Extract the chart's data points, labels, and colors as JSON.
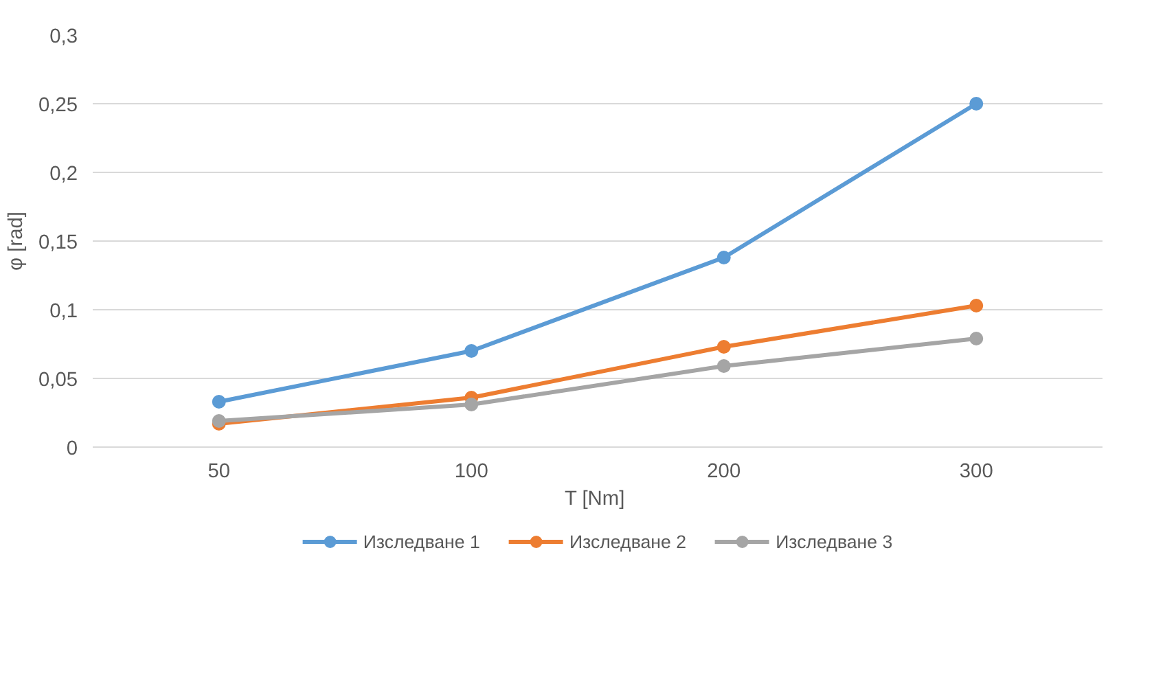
{
  "chart_data": {
    "type": "line",
    "xlabel": "T  [Nm]",
    "ylabel": "φ [rad]",
    "categories": [
      "50",
      "100",
      "200",
      "300"
    ],
    "ylim": [
      0,
      0.3
    ],
    "yticks": [
      0,
      {
        "value": 0.05,
        "label": "0,05"
      },
      {
        "value": 0.1,
        "label": "0,1"
      },
      {
        "value": 0.15,
        "label": "0,15"
      },
      {
        "value": 0.2,
        "label": "0,2"
      },
      {
        "value": 0.25,
        "label": "0,25"
      },
      {
        "value": 0.3,
        "label": "0,3"
      }
    ],
    "grid": "y",
    "legend": "bottom",
    "marker": "circle",
    "line_style": "solid",
    "series": [
      {
        "name": "Изследване 1",
        "color": "#5b9bd5",
        "values": [
          0.033,
          0.07,
          0.138,
          0.25
        ]
      },
      {
        "name": "Изследване 2",
        "color": "#ed7d31",
        "values": [
          0.017,
          0.036,
          0.073,
          0.103
        ]
      },
      {
        "name": "Изследване 3",
        "color": "#a5a5a5",
        "values": [
          0.019,
          0.031,
          0.059,
          0.079
        ]
      }
    ]
  }
}
